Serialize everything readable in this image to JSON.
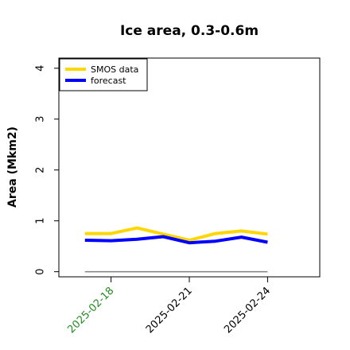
{
  "chart_data": {
    "type": "line",
    "title": "Ice area, 0.3-0.6m",
    "xlabel": "",
    "ylabel": "Area (Mkm2)",
    "x": [
      "2025-02-17",
      "2025-02-18",
      "2025-02-19",
      "2025-02-20",
      "2025-02-21",
      "2025-02-22",
      "2025-02-23",
      "2025-02-24"
    ],
    "x_ticks": [
      "2025-02-18",
      "2025-02-21",
      "2025-02-24"
    ],
    "x_tick_colors": [
      "#228b22",
      "#000000",
      "#000000"
    ],
    "xlim": [
      "2025-02-16",
      "2025-02-26"
    ],
    "ylim": [
      -0.1,
      4.2
    ],
    "y_ticks": [
      0,
      1,
      2,
      3,
      4
    ],
    "y_tick_labels": [
      "0",
      "1",
      "2",
      "3",
      "4"
    ],
    "series": [
      {
        "name": "SMOS data",
        "color": "#ffd700",
        "values": [
          0.75,
          0.75,
          0.86,
          0.74,
          0.62,
          0.75,
          0.8,
          0.74
        ]
      },
      {
        "name": "forecast",
        "color": "#0000ff",
        "values": [
          0.62,
          0.61,
          0.64,
          0.69,
          0.57,
          0.6,
          0.68,
          0.58
        ]
      }
    ],
    "reference_line": {
      "y": 0,
      "color": "#808080"
    },
    "legend": {
      "position": "top-left",
      "entries": [
        "SMOS data",
        "forecast"
      ]
    },
    "grid": false
  }
}
